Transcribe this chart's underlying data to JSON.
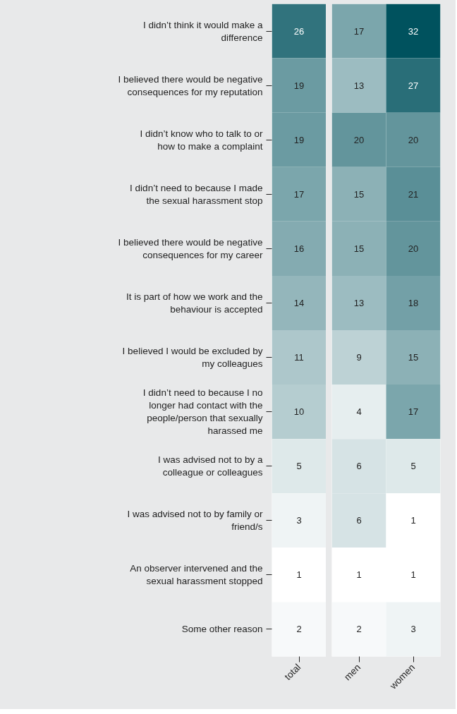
{
  "chart_data": [
    {
      "type": "heatmap",
      "categories": [
        "total"
      ],
      "y_categories": [
        "I didn’t think it would make a difference",
        "I believed there would be negative consequences for my reputation",
        "I didn’t know who to talk to or how to make a complaint",
        "I didn’t need to because I made the sexual harassment stop",
        "I believed there would be negative consequences for my career",
        "It is part of how we work and the behaviour is accepted",
        "I believed I would be excluded by my colleagues",
        "I didn’t need to because I no longer had contact with the people/person that sexually harassed me",
        "I was advised not to by a colleague or colleagues",
        "I was advised not to by family or friend/s",
        "An observer intervened and the sexual harassment stopped",
        "Some other reason"
      ],
      "cells": [
        [
          26
        ],
        [
          19
        ],
        [
          19
        ],
        [
          17
        ],
        [
          16
        ],
        [
          14
        ],
        [
          11
        ],
        [
          10
        ],
        [
          5
        ],
        [
          3
        ],
        [
          1
        ],
        [
          2
        ]
      ],
      "data_labels": true
    },
    {
      "type": "heatmap",
      "categories": [
        "men",
        "women"
      ],
      "y_categories": [
        "I didn’t think it would make a difference",
        "I believed there would be negative consequences for my reputation",
        "I didn’t know who to talk to or how to make a complaint",
        "I didn’t need to because I made the sexual harassment stop",
        "I believed there would be negative consequences for my career",
        "It is part of how we work and the behaviour is accepted",
        "I believed I would be excluded by my colleagues",
        "I didn’t need to because I no longer had contact with the people/person that sexually harassed me",
        "I was advised not to by a colleague or colleagues",
        "I was advised not to by family or friend/s",
        "An observer intervened and the sexual harassment stopped",
        "Some other reason"
      ],
      "cells": [
        [
          17,
          32
        ],
        [
          13,
          27
        ],
        [
          20,
          20
        ],
        [
          15,
          21
        ],
        [
          15,
          20
        ],
        [
          13,
          18
        ],
        [
          9,
          15
        ],
        [
          4,
          17
        ],
        [
          6,
          5
        ],
        [
          6,
          1
        ],
        [
          1,
          1
        ],
        [
          2,
          3
        ]
      ],
      "data_labels": true,
      "tick_labels": "x"
    }
  ]
}
